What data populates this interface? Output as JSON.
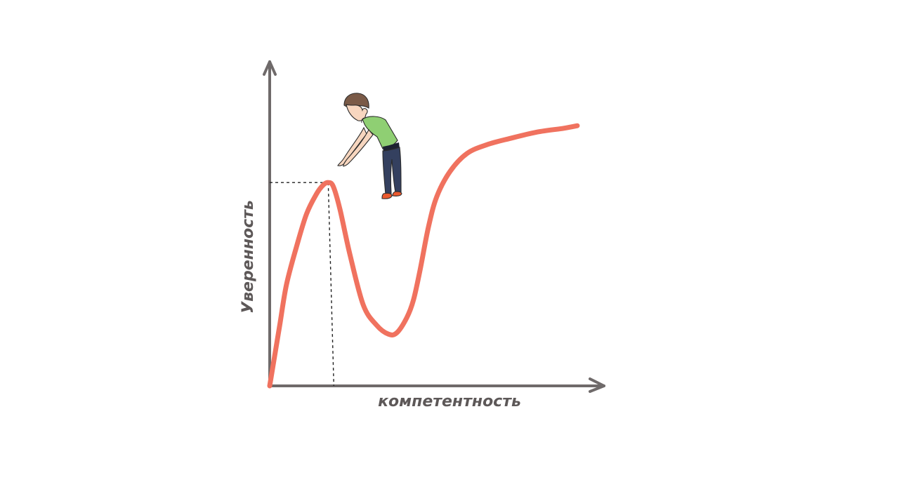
{
  "chart_data": {
    "type": "line",
    "title": "",
    "xlabel": "компетентность",
    "ylabel": "Уверенность",
    "grid": false,
    "legend": "none",
    "x": [
      0,
      1,
      3,
      5,
      8,
      11,
      14,
      16,
      17.5,
      19,
      21,
      24,
      28,
      32,
      35.5,
      38,
      41,
      43,
      45,
      47.5,
      50,
      54,
      59,
      65,
      72,
      80,
      88,
      92
    ],
    "y": [
      0,
      8,
      24,
      40,
      55,
      68,
      76,
      79.5,
      80.5,
      79,
      70,
      52,
      32,
      24,
      20.5,
      21,
      27,
      34,
      46,
      63,
      75,
      85,
      92,
      95.5,
      98,
      100.5,
      102,
      103
    ],
    "highlight": {
      "x": 17.5,
      "y": 80.5,
      "style": "dashed"
    },
    "axis_range": {
      "x": [
        0,
        100
      ],
      "y": [
        0,
        100
      ]
    },
    "colors": {
      "curve": "#f0725f",
      "axes": "#6f6a6a",
      "guides": "#222222"
    }
  },
  "illustration": {
    "subject": "pointing-person-icon"
  }
}
